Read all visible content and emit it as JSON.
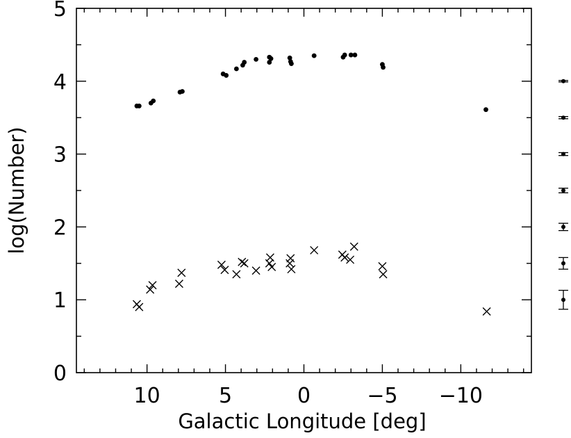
{
  "chart_data": {
    "type": "scatter",
    "title": "",
    "xlabel": "Galactic Longitude [deg]",
    "ylabel": "log(Number)",
    "xlim": [
      14.5,
      -14.5
    ],
    "ylim": [
      0,
      5
    ],
    "x_ticks": [
      10,
      5,
      0,
      -5,
      -10
    ],
    "x_tick_labels": [
      "10",
      "5",
      "0",
      "−5",
      "−10"
    ],
    "y_ticks": [
      0,
      1,
      2,
      3,
      4,
      5
    ],
    "y_tick_labels": [
      "0",
      "1",
      "2",
      "3",
      "4",
      "5"
    ],
    "grid": false,
    "series": [
      {
        "marker": "filled-circle",
        "points": [
          [
            10.65,
            3.66
          ],
          [
            10.5,
            3.66
          ],
          [
            9.75,
            3.7
          ],
          [
            9.6,
            3.73
          ],
          [
            7.9,
            3.85
          ],
          [
            7.75,
            3.86
          ],
          [
            5.15,
            4.1
          ],
          [
            4.95,
            4.08
          ],
          [
            4.3,
            4.17
          ],
          [
            3.9,
            4.22
          ],
          [
            3.8,
            4.26
          ],
          [
            3.05,
            4.3
          ],
          [
            2.2,
            4.33
          ],
          [
            2.1,
            4.31
          ],
          [
            2.2,
            4.26
          ],
          [
            0.9,
            4.32
          ],
          [
            0.85,
            4.27
          ],
          [
            0.8,
            4.24
          ],
          [
            -0.65,
            4.35
          ],
          [
            -2.5,
            4.33
          ],
          [
            -2.6,
            4.36
          ],
          [
            -3.0,
            4.36
          ],
          [
            -3.25,
            4.36
          ],
          [
            -5.0,
            4.23
          ],
          [
            -5.05,
            4.19
          ],
          [
            -11.6,
            3.61
          ]
        ]
      },
      {
        "marker": "cross",
        "points": [
          [
            10.65,
            0.94
          ],
          [
            10.5,
            0.9
          ],
          [
            9.8,
            1.14
          ],
          [
            9.65,
            1.2
          ],
          [
            7.95,
            1.22
          ],
          [
            7.8,
            1.37
          ],
          [
            5.25,
            1.48
          ],
          [
            5.05,
            1.41
          ],
          [
            4.3,
            1.35
          ],
          [
            3.95,
            1.52
          ],
          [
            3.8,
            1.5
          ],
          [
            3.05,
            1.4
          ],
          [
            2.2,
            1.5
          ],
          [
            2.15,
            1.58
          ],
          [
            2.05,
            1.45
          ],
          [
            0.9,
            1.5
          ],
          [
            0.85,
            1.57
          ],
          [
            0.8,
            1.42
          ],
          [
            -0.65,
            1.68
          ],
          [
            -2.45,
            1.62
          ],
          [
            -2.6,
            1.58
          ],
          [
            -2.95,
            1.55
          ],
          [
            -3.2,
            1.73
          ],
          [
            -5.0,
            1.46
          ],
          [
            -5.05,
            1.35
          ],
          [
            -11.65,
            0.84
          ]
        ]
      }
    ],
    "error_bars": {
      "placement": "right margin",
      "items": [
        {
          "y": 4.0,
          "err": 0.01
        },
        {
          "y": 3.5,
          "err": 0.015
        },
        {
          "y": 3.0,
          "err": 0.02
        },
        {
          "y": 2.5,
          "err": 0.032
        },
        {
          "y": 2.0,
          "err": 0.05
        },
        {
          "y": 1.5,
          "err": 0.08
        },
        {
          "y": 1.0,
          "err": 0.13
        }
      ]
    }
  }
}
